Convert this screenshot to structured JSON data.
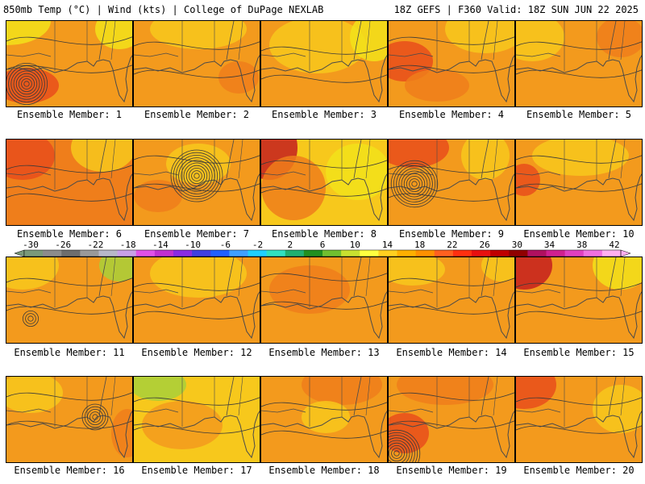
{
  "header": {
    "left": "850mb Temp (°C) | Wind (kts) | College of DuPage NEXLAB",
    "right": "18Z GEFS | F360 Valid: 18Z SUN JUN 22 2025"
  },
  "members": [
    {
      "label": "Ensemble Member: 1"
    },
    {
      "label": "Ensemble Member: 2"
    },
    {
      "label": "Ensemble Member: 3"
    },
    {
      "label": "Ensemble Member: 4"
    },
    {
      "label": "Ensemble Member: 5"
    },
    {
      "label": "Ensemble Member: 6"
    },
    {
      "label": "Ensemble Member: 7"
    },
    {
      "label": "Ensemble Member: 8"
    },
    {
      "label": "Ensemble Member: 9"
    },
    {
      "label": "Ensemble Member: 10"
    },
    {
      "label": "Ensemble Member: 11"
    },
    {
      "label": "Ensemble Member: 12"
    },
    {
      "label": "Ensemble Member: 13"
    },
    {
      "label": "Ensemble Member: 14"
    },
    {
      "label": "Ensemble Member: 15"
    },
    {
      "label": "Ensemble Member: 16"
    },
    {
      "label": "Ensemble Member: 17"
    },
    {
      "label": "Ensemble Member: 18"
    },
    {
      "label": "Ensemble Member: 19"
    },
    {
      "label": "Ensemble Member: 20"
    }
  ],
  "colorbar": {
    "tick_labels": [
      "-30",
      "-26",
      "-22",
      "-18",
      "-14",
      "-10",
      "-6",
      "-2",
      "2",
      "6",
      "10",
      "14",
      "18",
      "22",
      "26",
      "30",
      "34",
      "38",
      "42"
    ],
    "colors": [
      "#7a9a7a",
      "#8c8c8c",
      "#6e6e6e",
      "#9a9a9a",
      "#b8b8c8",
      "#c8a0e8",
      "#e050e8",
      "#c030d0",
      "#8a2be2",
      "#4040e0",
      "#2060ff",
      "#40a0ff",
      "#20d0ff",
      "#30e0c0",
      "#20b070",
      "#209020",
      "#70c030",
      "#c8e030",
      "#ffff40",
      "#ffd020",
      "#ffb000",
      "#ff9000",
      "#ff6020",
      "#ff3010",
      "#e81010",
      "#c00000",
      "#900000",
      "#b01060",
      "#d02090",
      "#e040c0",
      "#f070e0",
      "#ffb0f0"
    ]
  },
  "palette": {
    "warm_base": "#f39a1d",
    "yellow": "#f7c81c",
    "light_yellow": "#f2e21a",
    "orange_dark": "#ef7e1b",
    "red": "#e84e1b",
    "dark_red": "#c41f1f",
    "green": "#a8d03a",
    "coast": "#4a4a4a",
    "isobar": "#3a3a3a"
  }
}
